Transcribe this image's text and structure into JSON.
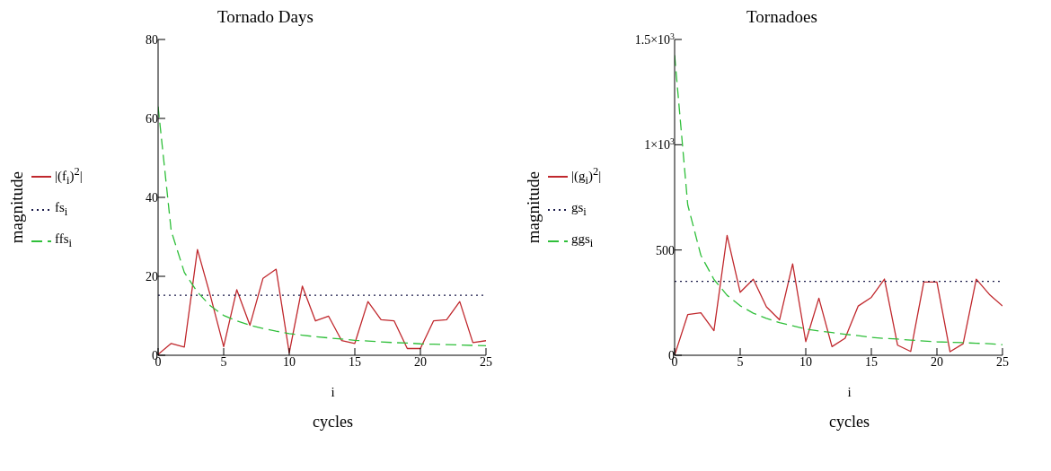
{
  "chart_data": [
    {
      "type": "line",
      "title": "Tornado Days",
      "xlabel": "cycles",
      "ylabel": "magnitude",
      "annotations": [
        "i"
      ],
      "x": [
        0,
        1,
        2,
        3,
        4,
        5,
        6,
        7,
        8,
        9,
        10,
        11,
        12,
        13,
        14,
        15,
        16,
        17,
        18,
        19,
        20,
        21,
        22,
        23,
        24,
        25
      ],
      "xlim": [
        0,
        25
      ],
      "xticks": [
        0,
        5,
        10,
        15,
        20,
        25
      ],
      "ylim": [
        0,
        80
      ],
      "yticks": [
        0,
        20,
        40,
        60,
        80
      ],
      "legend": "left",
      "series": [
        {
          "name": "|(f$_{i}$)$^{2}$|",
          "color": "#c0282d",
          "line_style": "solid",
          "values": [
            0.2,
            3.0,
            2.1,
            26.8,
            14.9,
            2.2,
            16.6,
            7.6,
            19.5,
            21.8,
            0.6,
            17.5,
            8.7,
            9.9,
            3.7,
            3.0,
            13.6,
            9.0,
            8.7,
            1.7,
            1.7,
            8.7,
            9.0,
            13.6,
            3.2,
            3.7
          ]
        },
        {
          "name": "fs$_{i}$",
          "color": "#1a1a4a",
          "line_style": "dotted",
          "values": [
            15.2,
            15.2,
            15.2,
            15.2,
            15.2,
            15.2,
            15.2,
            15.2,
            15.2,
            15.2,
            15.2,
            15.2,
            15.2,
            15.2,
            15.2,
            15.2,
            15.2,
            15.2,
            15.2,
            15.2,
            15.2,
            15.2,
            15.2,
            15.2,
            15.2,
            15.2
          ]
        },
        {
          "name": "ffs$_{i}$",
          "color": "#2fbf3a",
          "line_style": "dashed",
          "values": [
            63,
            31.5,
            21,
            16,
            12.5,
            10.1,
            8.7,
            7.6,
            6.8,
            6.1,
            5.5,
            5.1,
            4.7,
            4.4,
            4.1,
            3.8,
            3.6,
            3.4,
            3.2,
            3.1,
            2.9,
            2.8,
            2.7,
            2.6,
            2.5,
            2.4
          ]
        }
      ]
    },
    {
      "type": "line",
      "title": "Tornadoes",
      "xlabel": "cycles",
      "ylabel": "magnitude",
      "annotations": [
        "i"
      ],
      "x": [
        0,
        1,
        2,
        3,
        4,
        5,
        6,
        7,
        8,
        9,
        10,
        11,
        12,
        13,
        14,
        15,
        16,
        17,
        18,
        19,
        20,
        21,
        22,
        23,
        24,
        25
      ],
      "xlim": [
        0,
        25
      ],
      "xticks": [
        0,
        5,
        10,
        15,
        20,
        25
      ],
      "ylim": [
        0,
        1500
      ],
      "yticks": [
        0,
        500,
        {
          "value": 1000,
          "label": "1×10$^{3}$"
        },
        {
          "value": 1500,
          "label": "1.5×10$^{3}$"
        }
      ],
      "legend": "left",
      "series": [
        {
          "name": "|(g$_{i}$)$^{2}$|",
          "color": "#c0282d",
          "line_style": "solid",
          "values": [
            0,
            193,
            202,
            117,
            569,
            299,
            361,
            230,
            168,
            434,
            65,
            271,
            41,
            81,
            234,
            275,
            362,
            48,
            18,
            348,
            348,
            17,
            55,
            362,
            289,
            234
          ]
        },
        {
          "name": "gs$_{i}$",
          "color": "#1a1a4a",
          "line_style": "dotted",
          "values": [
            351,
            351,
            351,
            351,
            351,
            351,
            351,
            351,
            351,
            351,
            351,
            351,
            351,
            351,
            351,
            351,
            351,
            351,
            351,
            351,
            351,
            351,
            351,
            351,
            351,
            351
          ]
        },
        {
          "name": "ggs$_{i}$",
          "color": "#2fbf3a",
          "line_style": "dashed",
          "values": [
            1425,
            715,
            475,
            360,
            285,
            235,
            200,
            175,
            155,
            140,
            125,
            115,
            108,
            100,
            93,
            85,
            80,
            77,
            72,
            68,
            64,
            62,
            60,
            57,
            55,
            50
          ]
        }
      ]
    }
  ]
}
